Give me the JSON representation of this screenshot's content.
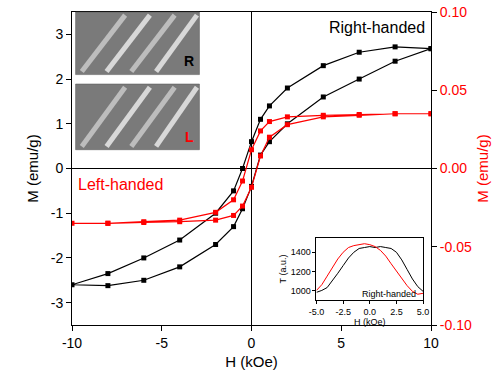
{
  "chart_data": [
    {
      "type": "line",
      "x_label": "H (kOe)",
      "y_label": "M (emu/g)",
      "y2_label": "M (emu/g)",
      "xlim": [
        -10,
        10
      ],
      "xticks": [
        -10,
        -5,
        0,
        5,
        10
      ],
      "ylim": [
        -3.5,
        3.5
      ],
      "yticks": [
        -3,
        -2,
        -1,
        0,
        1,
        2,
        3
      ],
      "y2lim": [
        -0.1,
        0.1
      ],
      "y2ticks": [
        {
          "value": -0.1,
          "label": "-0.10"
        },
        {
          "value": -0.05,
          "label": "-0.05"
        },
        {
          "value": 0,
          "label": "0.00"
        },
        {
          "value": 0.05,
          "label": "0.05"
        },
        {
          "value": 0.1,
          "label": "0.10"
        }
      ],
      "grid": false,
      "series": [
        {
          "name": "Right-handed",
          "color": "#000000",
          "marker": "square",
          "line_style": "solid",
          "x": [
            10,
            8,
            6,
            4,
            2,
            1,
            0.5,
            0,
            -0.5,
            -1,
            -2,
            -4,
            -6,
            -8,
            -10,
            -8,
            -6,
            -4,
            -2,
            -1,
            -0.5,
            0,
            0.5,
            1,
            2,
            4,
            6,
            8,
            10
          ],
          "values": [
            2.68,
            2.72,
            2.6,
            2.3,
            1.8,
            1.4,
            1.1,
            0.6,
            0.0,
            -0.5,
            -1.0,
            -1.6,
            -2.0,
            -2.35,
            -2.6,
            -2.62,
            -2.5,
            -2.2,
            -1.7,
            -1.3,
            -0.9,
            -0.4,
            0.3,
            0.6,
            1.0,
            1.6,
            2.0,
            2.4,
            2.68
          ]
        },
        {
          "name": "Left-handed",
          "color": "#ff0000",
          "marker": "square",
          "line_style": "solid",
          "axis": "y2",
          "x": [
            10,
            8,
            6,
            4,
            2,
            1,
            0.5,
            0,
            -0.5,
            -1,
            -2,
            -4,
            -6,
            -8,
            -10,
            -8,
            -6,
            -4,
            -2,
            -1,
            -0.5,
            0,
            0.5,
            1,
            2,
            4,
            6,
            8,
            10
          ],
          "values": [
            0.035,
            0.035,
            0.0345,
            0.034,
            0.033,
            0.03,
            0.024,
            0.012,
            -0.008,
            -0.02,
            -0.028,
            -0.033,
            -0.034,
            -0.035,
            -0.035,
            -0.035,
            -0.0345,
            -0.034,
            -0.033,
            -0.03,
            -0.024,
            -0.012,
            0.008,
            0.02,
            0.028,
            0.033,
            0.034,
            0.035,
            0.035
          ]
        }
      ],
      "sem_images": [
        {
          "label": "R",
          "color": "#000000"
        },
        {
          "label": "L",
          "color": "#ff0000"
        }
      ]
    },
    {
      "type": "line",
      "x_label": "H (kOe)",
      "y_label": "T (a.u.)",
      "xlim": [
        -5,
        5
      ],
      "xticks": [
        {
          "value": -5,
          "label": "-5.0"
        },
        {
          "value": -2.5,
          "label": "-2.5"
        },
        {
          "value": 0,
          "label": "0.0"
        },
        {
          "value": 2.5,
          "label": "2.5"
        },
        {
          "value": 5,
          "label": "5.0"
        }
      ],
      "ylim": [
        900,
        1550
      ],
      "yticks": [
        1000,
        1200,
        1400
      ],
      "grid": false,
      "series": [
        {
          "name": "Right-handed",
          "color": "#000000",
          "marker": "none",
          "line_style": "solid",
          "x": [
            -5,
            -4.5,
            -4,
            -3.5,
            -3,
            -2.5,
            -2,
            -1.5,
            -1,
            -0.5,
            0,
            0.5,
            1,
            1.5,
            2,
            2.5,
            3,
            3.5,
            4,
            4.5,
            5
          ],
          "values": [
            980,
            1000,
            1030,
            1100,
            1180,
            1260,
            1340,
            1400,
            1440,
            1450,
            1460,
            1450,
            1460,
            1450,
            1440,
            1400,
            1320,
            1220,
            1120,
            1040,
            990
          ]
        },
        {
          "color": "#ff0000",
          "marker": "none",
          "line_style": "solid",
          "x": [
            -5,
            -4.5,
            -4,
            -3.5,
            -3,
            -2.5,
            -2,
            -1.5,
            -1,
            -0.5,
            0,
            0.5,
            1,
            1.5,
            2,
            2.5,
            3,
            3.5,
            4,
            4.5,
            5
          ],
          "values": [
            1000,
            1060,
            1150,
            1240,
            1330,
            1400,
            1450,
            1470,
            1480,
            1490,
            1480,
            1460,
            1420,
            1360,
            1280,
            1200,
            1120,
            1050,
            990,
            960,
            970
          ]
        }
      ]
    }
  ]
}
